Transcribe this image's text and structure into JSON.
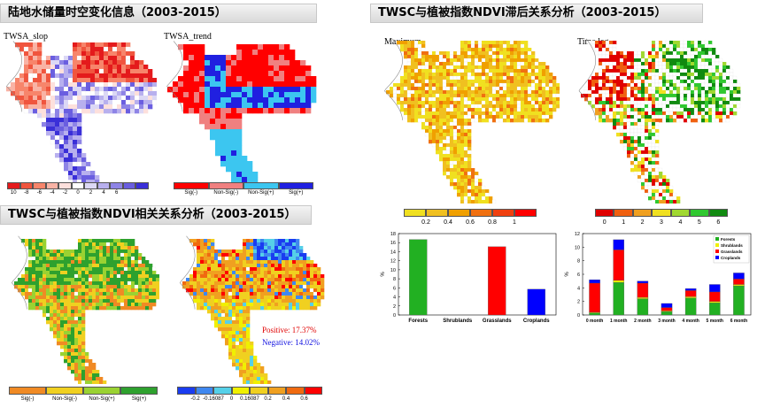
{
  "banners": {
    "b1": "陆地水储量时空变化信息（2003-2015）",
    "b2": "TWSC与植被指数NDVI相关关系分析（2003-2015）",
    "b3": "TWSC与植被指数NDVI滞后关系分析（2003-2015）"
  },
  "panels": {
    "slope": {
      "title": "TWSA_slop",
      "legend_ticks": [
        "10",
        "-8",
        "-6",
        "-4",
        "-2",
        "0",
        "2",
        "4",
        "6"
      ],
      "legend_colors": [
        "#e41a1c",
        "#f0553e",
        "#f7856b",
        "#f9b3a5",
        "#fde0dc",
        "#ffffff",
        "#dcd8f5",
        "#b8b0ee",
        "#8e84e6",
        "#6a5ee0",
        "#3a2fd8"
      ]
    },
    "trend": {
      "title": "TWSA_trend",
      "legend_labels": [
        "Sig(-)",
        "Non-Sig(-)",
        "Non-Sig(+)",
        "Sig(+)"
      ],
      "legend_colors": [
        "#ff0000",
        "#f08080",
        "#3cc6f0",
        "#2020e0"
      ]
    },
    "corr_sig": {
      "legend_labels": [
        "Sig(-)",
        "Non-Sig(-)",
        "Non-Sig(+)",
        "Sig(+)"
      ],
      "legend_colors": [
        "#f08a24",
        "#f0d020",
        "#9ad232",
        "#2ea12e"
      ]
    },
    "corr": {
      "positive": "Positive: 17.37%",
      "negative": "Negative: 14.02%",
      "legend_ticks": [
        "-0.2",
        "-0.16087",
        "0",
        "0.16087",
        "0.2",
        "0.4",
        "0.6"
      ],
      "legend_colors": [
        "#1a3cf0",
        "#3f88f0",
        "#55d0e8",
        "#f0f000",
        "#f0d020",
        "#f0a020",
        "#f06a10",
        "#ff0000"
      ]
    },
    "maximum": {
      "title": "Maximum",
      "legend_ticks": [
        "0.2",
        "0.4",
        "0.6",
        "0.8",
        "1"
      ],
      "legend_colors": [
        "#f0e020",
        "#f0c020",
        "#f0a000",
        "#f07010",
        "#f04010",
        "#ff0000"
      ]
    },
    "timelag": {
      "title": "Time lag",
      "legend_ticks": [
        "0",
        "1",
        "2",
        "3",
        "4",
        "5",
        "6"
      ],
      "legend_colors": [
        "#e00000",
        "#f06010",
        "#f0a020",
        "#f0e020",
        "#a0d830",
        "#30c830",
        "#108a10"
      ]
    }
  },
  "chart_data": [
    {
      "type": "bar",
      "categories": [
        "Forests",
        "Shrublands",
        "Grasslands",
        "Croplands"
      ],
      "values": [
        16.7,
        0,
        15.1,
        5.7
      ],
      "colors": [
        "#22b022",
        "#f0f000",
        "#ff0000",
        "#0000ff"
      ],
      "ylabel": "%",
      "ylim": [
        0,
        18
      ],
      "yticks": [
        0,
        2,
        4,
        6,
        8,
        10,
        12,
        14,
        16,
        18
      ]
    },
    {
      "type": "bar",
      "stacked": true,
      "categories": [
        "0 month",
        "1 month",
        "2 month",
        "3 month",
        "4 month",
        "5 month",
        "6 month"
      ],
      "series": [
        {
          "name": "Forests",
          "values": [
            0.3,
            4.8,
            2.4,
            0.5,
            2.5,
            1.8,
            4.3
          ]
        },
        {
          "name": "Shrublands",
          "values": [
            0.1,
            0.3,
            0.2,
            0.1,
            0.2,
            0.2,
            0.2
          ]
        },
        {
          "name": "Grasslands",
          "values": [
            4.3,
            4.5,
            2.1,
            0.5,
            0.9,
            1.4,
            0.8
          ]
        },
        {
          "name": "Croplands",
          "values": [
            0.5,
            1.5,
            0.3,
            0.6,
            0.3,
            1.1,
            0.9
          ]
        }
      ],
      "colors": [
        "#22b022",
        "#f0f000",
        "#ff0000",
        "#0000ff"
      ],
      "ylabel": "%",
      "ylim": [
        0,
        12
      ],
      "yticks": [
        0,
        2,
        4,
        6,
        8,
        10,
        12
      ],
      "legend": "top-right"
    }
  ]
}
